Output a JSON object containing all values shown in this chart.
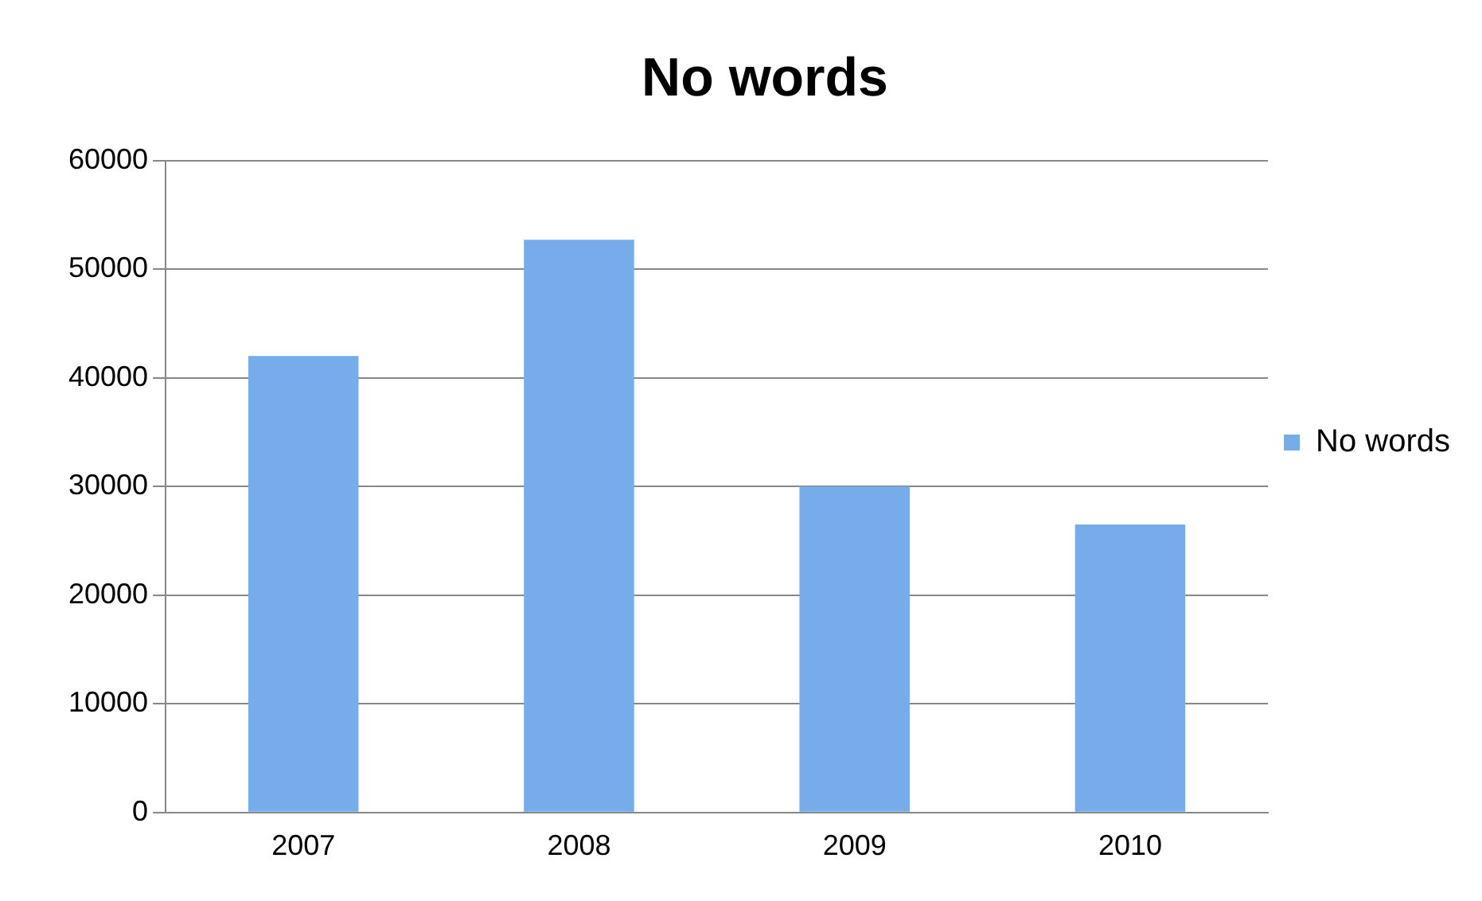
{
  "chart_data": {
    "type": "bar",
    "title": "No words",
    "categories": [
      "2007",
      "2008",
      "2009",
      "2010"
    ],
    "series": [
      {
        "name": "No words",
        "color": "#76acea",
        "values": [
          42000,
          52700,
          30000,
          26500
        ]
      }
    ],
    "ylim": [
      0,
      60000
    ],
    "yticks": [
      0,
      10000,
      20000,
      30000,
      40000,
      50000,
      60000
    ],
    "grid": "y",
    "legend": "right"
  }
}
